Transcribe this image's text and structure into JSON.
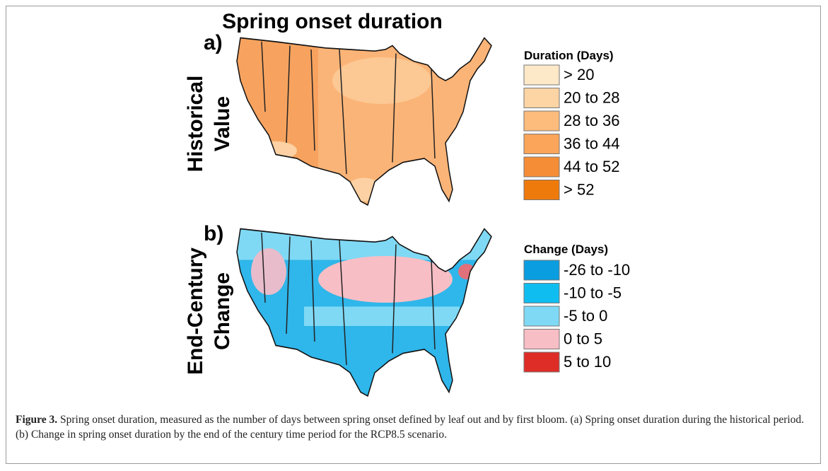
{
  "title": "Spring onset duration",
  "panels": [
    {
      "label": "a)",
      "row_label": [
        "Historical",
        "Value"
      ],
      "legend": {
        "title": "Duration (Days)",
        "items": [
          {
            "label": "> 20",
            "color": "#fde8c8"
          },
          {
            "label": "20 to 28",
            "color": "#fdd4a3"
          },
          {
            "label": "28 to 36",
            "color": "#fdbb7c"
          },
          {
            "label": "36 to 44",
            "color": "#fba55a"
          },
          {
            "label": "44 to 52",
            "color": "#f58d36"
          },
          {
            "label": "> 52",
            "color": "#ef7a0c"
          }
        ]
      }
    },
    {
      "label": "b)",
      "row_label": [
        "End-Century",
        "Change"
      ],
      "legend": {
        "title": "Change (Days)",
        "items": [
          {
            "label": "-26 to -10",
            "color": "#0a9ee0"
          },
          {
            "label": "-10 to -5",
            "color": "#10bdf0"
          },
          {
            "label": "-5 to 0",
            "color": "#7fd9f5"
          },
          {
            "label": "0 to 5",
            "color": "#f8bec5"
          },
          {
            "label": "5 to 10",
            "color": "#de2d26"
          }
        ]
      }
    }
  ],
  "caption": {
    "label": "Figure 3.",
    "text": "Spring onset duration, measured as the number of days between spring onset defined by leaf out and by first bloom. (a) Spring onset duration during the historical period. (b) Change in spring onset duration by the end of the century time period for the RCP8.5 scenario."
  }
}
